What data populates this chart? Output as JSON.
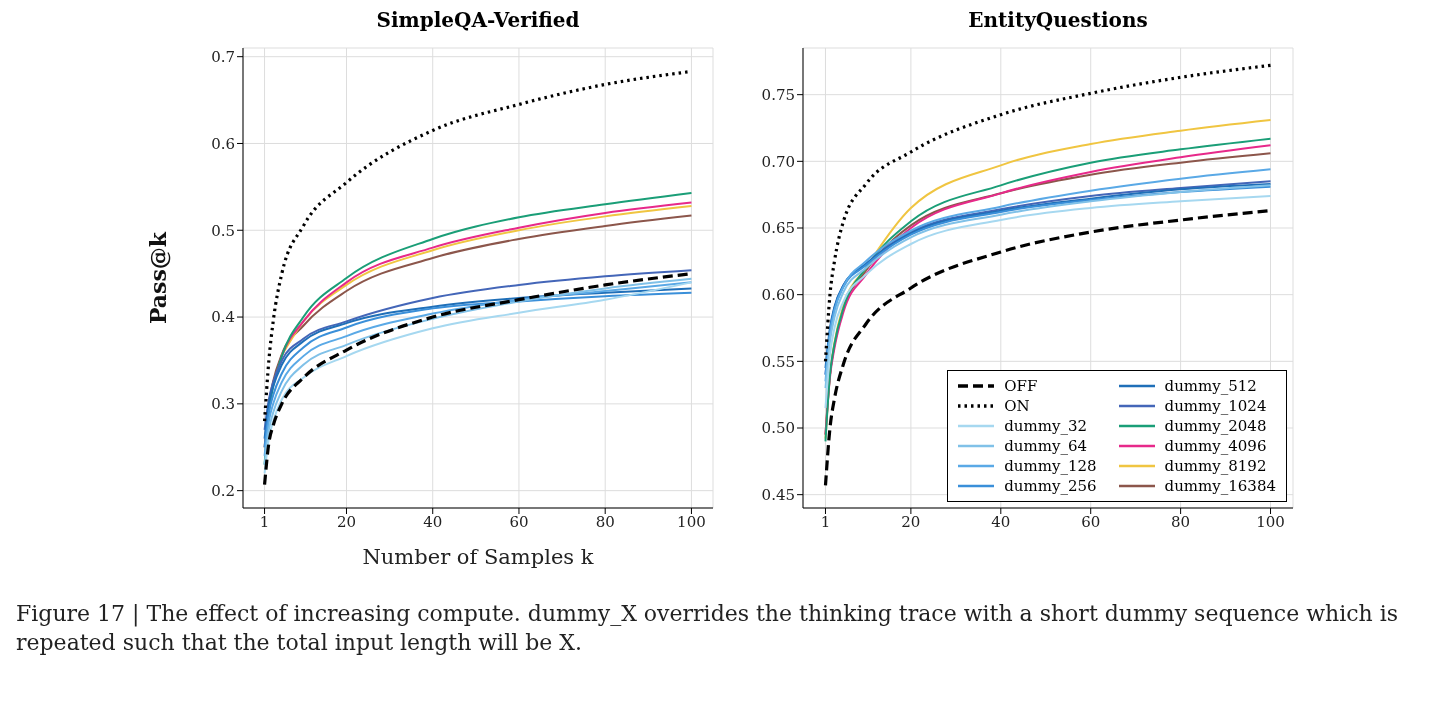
{
  "chart_data": [
    {
      "type": "line",
      "title": "SimpleQA-Verified",
      "xlabel": "Number of Samples k",
      "ylabel": "Pass@k",
      "x": [
        1,
        2,
        3,
        5,
        10,
        20,
        40,
        60,
        80,
        100
      ],
      "xlim": [
        -4,
        105
      ],
      "xticks": [
        1,
        20,
        40,
        60,
        80,
        100
      ],
      "ylim": [
        0.18,
        0.71
      ],
      "yticks": [
        0.2,
        0.3,
        0.4,
        0.5,
        0.6,
        0.7
      ],
      "grid": true,
      "legend": false,
      "annotations": [
        "Figure 17 | The effect of increasing compute. dummy_X overrides the thinking trace with a short dummy sequence which is repeated such that the total input length will be X."
      ],
      "series": [
        {
          "color": "#000000",
          "line_style": "dashed",
          "values": [
            0.207,
            0.255,
            0.275,
            0.3,
            0.33,
            0.362,
            0.4,
            0.42,
            0.437,
            0.45
          ]
        },
        {
          "color": "#000000",
          "line_style": "dotted",
          "values": [
            0.28,
            0.35,
            0.395,
            0.45,
            0.505,
            0.555,
            0.615,
            0.645,
            0.668,
            0.683
          ]
        },
        {
          "color": "#a6d8f0",
          "line_style": "solid",
          "values": [
            0.22,
            0.26,
            0.28,
            0.305,
            0.33,
            0.355,
            0.387,
            0.405,
            0.42,
            0.44
          ]
        },
        {
          "color": "#80c1e8",
          "line_style": "solid",
          "values": [
            0.23,
            0.27,
            0.29,
            0.315,
            0.345,
            0.368,
            0.398,
            0.418,
            0.433,
            0.444
          ]
        },
        {
          "color": "#5aa9e6",
          "line_style": "solid",
          "values": [
            0.24,
            0.28,
            0.3,
            0.325,
            0.355,
            0.378,
            0.404,
            0.42,
            0.43,
            0.44
          ]
        },
        {
          "color": "#3a8fd9",
          "line_style": "solid",
          "values": [
            0.25,
            0.29,
            0.31,
            0.335,
            0.365,
            0.388,
            0.41,
            0.418,
            0.424,
            0.428
          ]
        },
        {
          "color": "#1f6fb8",
          "line_style": "solid",
          "values": [
            0.26,
            0.3,
            0.32,
            0.345,
            0.372,
            0.393,
            0.412,
            0.422,
            0.428,
            0.433
          ]
        },
        {
          "color": "#4466b8",
          "line_style": "solid",
          "values": [
            0.27,
            0.305,
            0.325,
            0.35,
            0.375,
            0.395,
            0.422,
            0.437,
            0.447,
            0.454
          ]
        },
        {
          "color": "#1a9e77",
          "line_style": "solid",
          "values": [
            0.23,
            0.29,
            0.32,
            0.355,
            0.4,
            0.445,
            0.49,
            0.515,
            0.53,
            0.543
          ]
        },
        {
          "color": "#e7298a",
          "line_style": "solid",
          "values": [
            null,
            null,
            0.322,
            0.355,
            0.395,
            0.44,
            0.48,
            0.503,
            0.52,
            0.532
          ]
        },
        {
          "color": "#f0c541",
          "line_style": "solid",
          "values": [
            null,
            null,
            null,
            0.356,
            0.395,
            0.437,
            0.477,
            0.5,
            0.516,
            0.528
          ]
        },
        {
          "color": "#8c564b",
          "line_style": "solid",
          "values": [
            0.25,
            0.3,
            0.326,
            0.357,
            0.39,
            0.43,
            0.468,
            0.49,
            0.505,
            0.517
          ]
        }
      ]
    },
    {
      "type": "line",
      "title": "EntityQuestions",
      "x": [
        1,
        2,
        3,
        5,
        10,
        20,
        40,
        60,
        80,
        100
      ],
      "xlim": [
        -4,
        105
      ],
      "xticks": [
        1,
        20,
        40,
        60,
        80,
        100
      ],
      "ylim": [
        0.44,
        0.785
      ],
      "yticks": [
        {
          "value": 0.45,
          "label": "0.45"
        },
        {
          "value": 0.5,
          "label": "0.50"
        },
        {
          "value": 0.55,
          "label": "0.55"
        },
        {
          "value": 0.6,
          "label": "0.60"
        },
        {
          "value": 0.65,
          "label": "0.65"
        },
        {
          "value": 0.7,
          "label": "0.70"
        },
        {
          "value": 0.75,
          "label": "0.75"
        }
      ],
      "grid": true,
      "legend": "bottom right",
      "series": [
        {
          "name": "OFF",
          "color": "#000000",
          "line_style": "dashed",
          "values": [
            0.457,
            0.5,
            0.522,
            0.548,
            0.578,
            0.605,
            0.632,
            0.647,
            0.656,
            0.663
          ]
        },
        {
          "name": "ON",
          "color": "#000000",
          "line_style": "dotted",
          "values": [
            0.55,
            0.6,
            0.625,
            0.655,
            0.683,
            0.707,
            0.735,
            0.751,
            0.763,
            0.772
          ]
        },
        {
          "name": "dummy_32",
          "color": "#a6d8f0",
          "line_style": "solid",
          "values": [
            0.515,
            0.555,
            0.575,
            0.595,
            0.615,
            0.638,
            0.656,
            0.665,
            0.67,
            0.674
          ]
        },
        {
          "name": "dummy_64",
          "color": "#80c1e8",
          "line_style": "solid",
          "values": [
            0.53,
            0.565,
            0.583,
            0.602,
            0.62,
            0.643,
            0.66,
            0.67,
            0.677,
            0.682
          ]
        },
        {
          "name": "dummy_128",
          "color": "#5aa9e6",
          "line_style": "solid",
          "values": [
            0.535,
            0.57,
            0.588,
            0.606,
            0.625,
            0.648,
            0.666,
            0.678,
            0.687,
            0.694
          ]
        },
        {
          "name": "dummy_256",
          "color": "#3a8fd9",
          "line_style": "solid",
          "values": [
            0.54,
            0.572,
            0.589,
            0.606,
            0.622,
            0.645,
            0.662,
            0.671,
            0.677,
            0.681
          ]
        },
        {
          "name": "dummy_512",
          "color": "#1f6fb8",
          "line_style": "solid",
          "values": [
            0.545,
            0.575,
            0.591,
            0.607,
            0.623,
            0.646,
            0.663,
            0.672,
            0.679,
            0.683
          ]
        },
        {
          "name": "dummy_1024",
          "color": "#4466b8",
          "line_style": "solid",
          "values": [
            0.54,
            0.573,
            0.59,
            0.607,
            0.623,
            0.647,
            0.664,
            0.674,
            0.68,
            0.685
          ]
        },
        {
          "name": "dummy_2048",
          "color": "#1a9e77",
          "line_style": "solid",
          "values": [
            0.49,
            0.54,
            0.563,
            0.59,
            0.62,
            0.655,
            0.682,
            0.699,
            0.709,
            0.717
          ]
        },
        {
          "name": "dummy_4096",
          "color": "#e7298a",
          "line_style": "solid",
          "values": [
            0.495,
            0.538,
            0.56,
            0.587,
            0.615,
            0.65,
            0.676,
            0.692,
            0.703,
            0.712
          ]
        },
        {
          "name": "dummy_8192",
          "color": "#f0c541",
          "line_style": "solid",
          "values": [
            0.492,
            0.54,
            0.564,
            0.592,
            0.62,
            0.665,
            0.697,
            0.713,
            0.723,
            0.731
          ]
        },
        {
          "name": "dummy_16384",
          "color": "#8c564b",
          "line_style": "solid",
          "values": [
            0.495,
            0.54,
            0.562,
            0.589,
            0.618,
            0.652,
            0.676,
            0.69,
            0.699,
            0.706
          ]
        }
      ]
    }
  ]
}
